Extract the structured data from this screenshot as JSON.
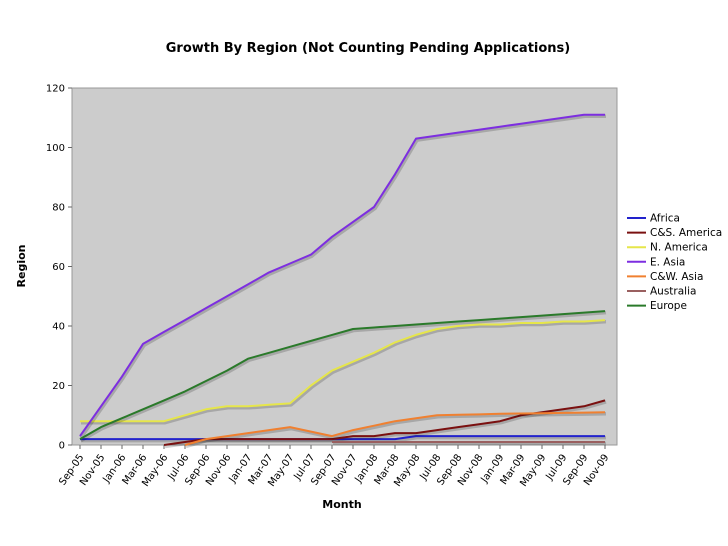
{
  "chart_data": {
    "type": "line",
    "title": "Growth By Region (Not Counting Pending Applications)",
    "xlabel": "Month",
    "ylabel": "Region",
    "ylim": [
      0,
      120
    ],
    "yticks": [
      0,
      20,
      40,
      60,
      80,
      100,
      120
    ],
    "grid": false,
    "legend_position": "right",
    "background_color": "#cccccc",
    "categories": [
      "Sep-05",
      "Nov-05",
      "Jan-06",
      "Mar-06",
      "May-06",
      "Jul-06",
      "Sep-06",
      "Nov-06",
      "Jan-07",
      "Mar-07",
      "May-07",
      "Jul-07",
      "Sep-07",
      "Nov-07",
      "Jan-08",
      "Mar-08",
      "May-08",
      "Jul-08",
      "Sep-08",
      "Nov-08",
      "Jan-09",
      "Mar-09",
      "May-09",
      "Jul-09",
      "Sep-09",
      "Nov-09"
    ],
    "series": [
      {
        "name": "Africa",
        "color": "#2222cc",
        "values": [
          2,
          2,
          2,
          2,
          2,
          2,
          2,
          2,
          2,
          2,
          2,
          2,
          2,
          2,
          2,
          2,
          3,
          3,
          3,
          3,
          3,
          3,
          3,
          3,
          3,
          3
        ]
      },
      {
        "name": "C&S. America",
        "color": "#7a1010",
        "values": [
          null,
          null,
          null,
          null,
          0,
          1,
          2,
          2,
          2,
          2,
          2,
          2,
          2,
          3,
          3,
          4,
          4,
          5,
          6,
          7,
          8,
          10,
          11,
          12,
          13,
          15
        ]
      },
      {
        "name": "N. America",
        "color": "#e6e64a",
        "values": [
          8,
          8,
          8,
          8,
          8,
          10,
          12,
          13,
          13,
          13.5,
          14,
          20,
          25,
          28,
          31,
          34.5,
          37,
          39,
          40,
          40.5,
          40.5,
          41,
          41,
          41.5,
          41.5,
          42
        ]
      },
      {
        "name": "E. Asia",
        "color": "#7d2ee0",
        "values": [
          3,
          13,
          23,
          34,
          38,
          42,
          46,
          50,
          54,
          58,
          61,
          64,
          70,
          75,
          80,
          91,
          103,
          104,
          105,
          106,
          107,
          108,
          109,
          110,
          111,
          111
        ]
      },
      {
        "name": "C&W. Asia",
        "color": "#f08030",
        "values": [
          null,
          null,
          null,
          null,
          null,
          0,
          2,
          3,
          4,
          5,
          6,
          4.5,
          3,
          5,
          6.5,
          8,
          9,
          10,
          10.2,
          10.3,
          10.5,
          10.6,
          10.7,
          10.8,
          10.9,
          11
        ]
      },
      {
        "name": "Australia",
        "color": "#9a6060",
        "values": [
          null,
          null,
          null,
          null,
          null,
          null,
          null,
          null,
          null,
          null,
          null,
          null,
          1,
          1,
          1,
          1,
          1,
          1,
          1,
          1,
          1,
          1,
          1,
          1,
          1,
          1
        ]
      },
      {
        "name": "Europe",
        "color": "#2a7a2a",
        "values": [
          2,
          6,
          9,
          12,
          15,
          18,
          21.5,
          25,
          29,
          31,
          33,
          35,
          37,
          39,
          39.5,
          40,
          40.5,
          41,
          41.5,
          42,
          42.5,
          43,
          43.5,
          44,
          44.5,
          45
        ]
      }
    ]
  }
}
